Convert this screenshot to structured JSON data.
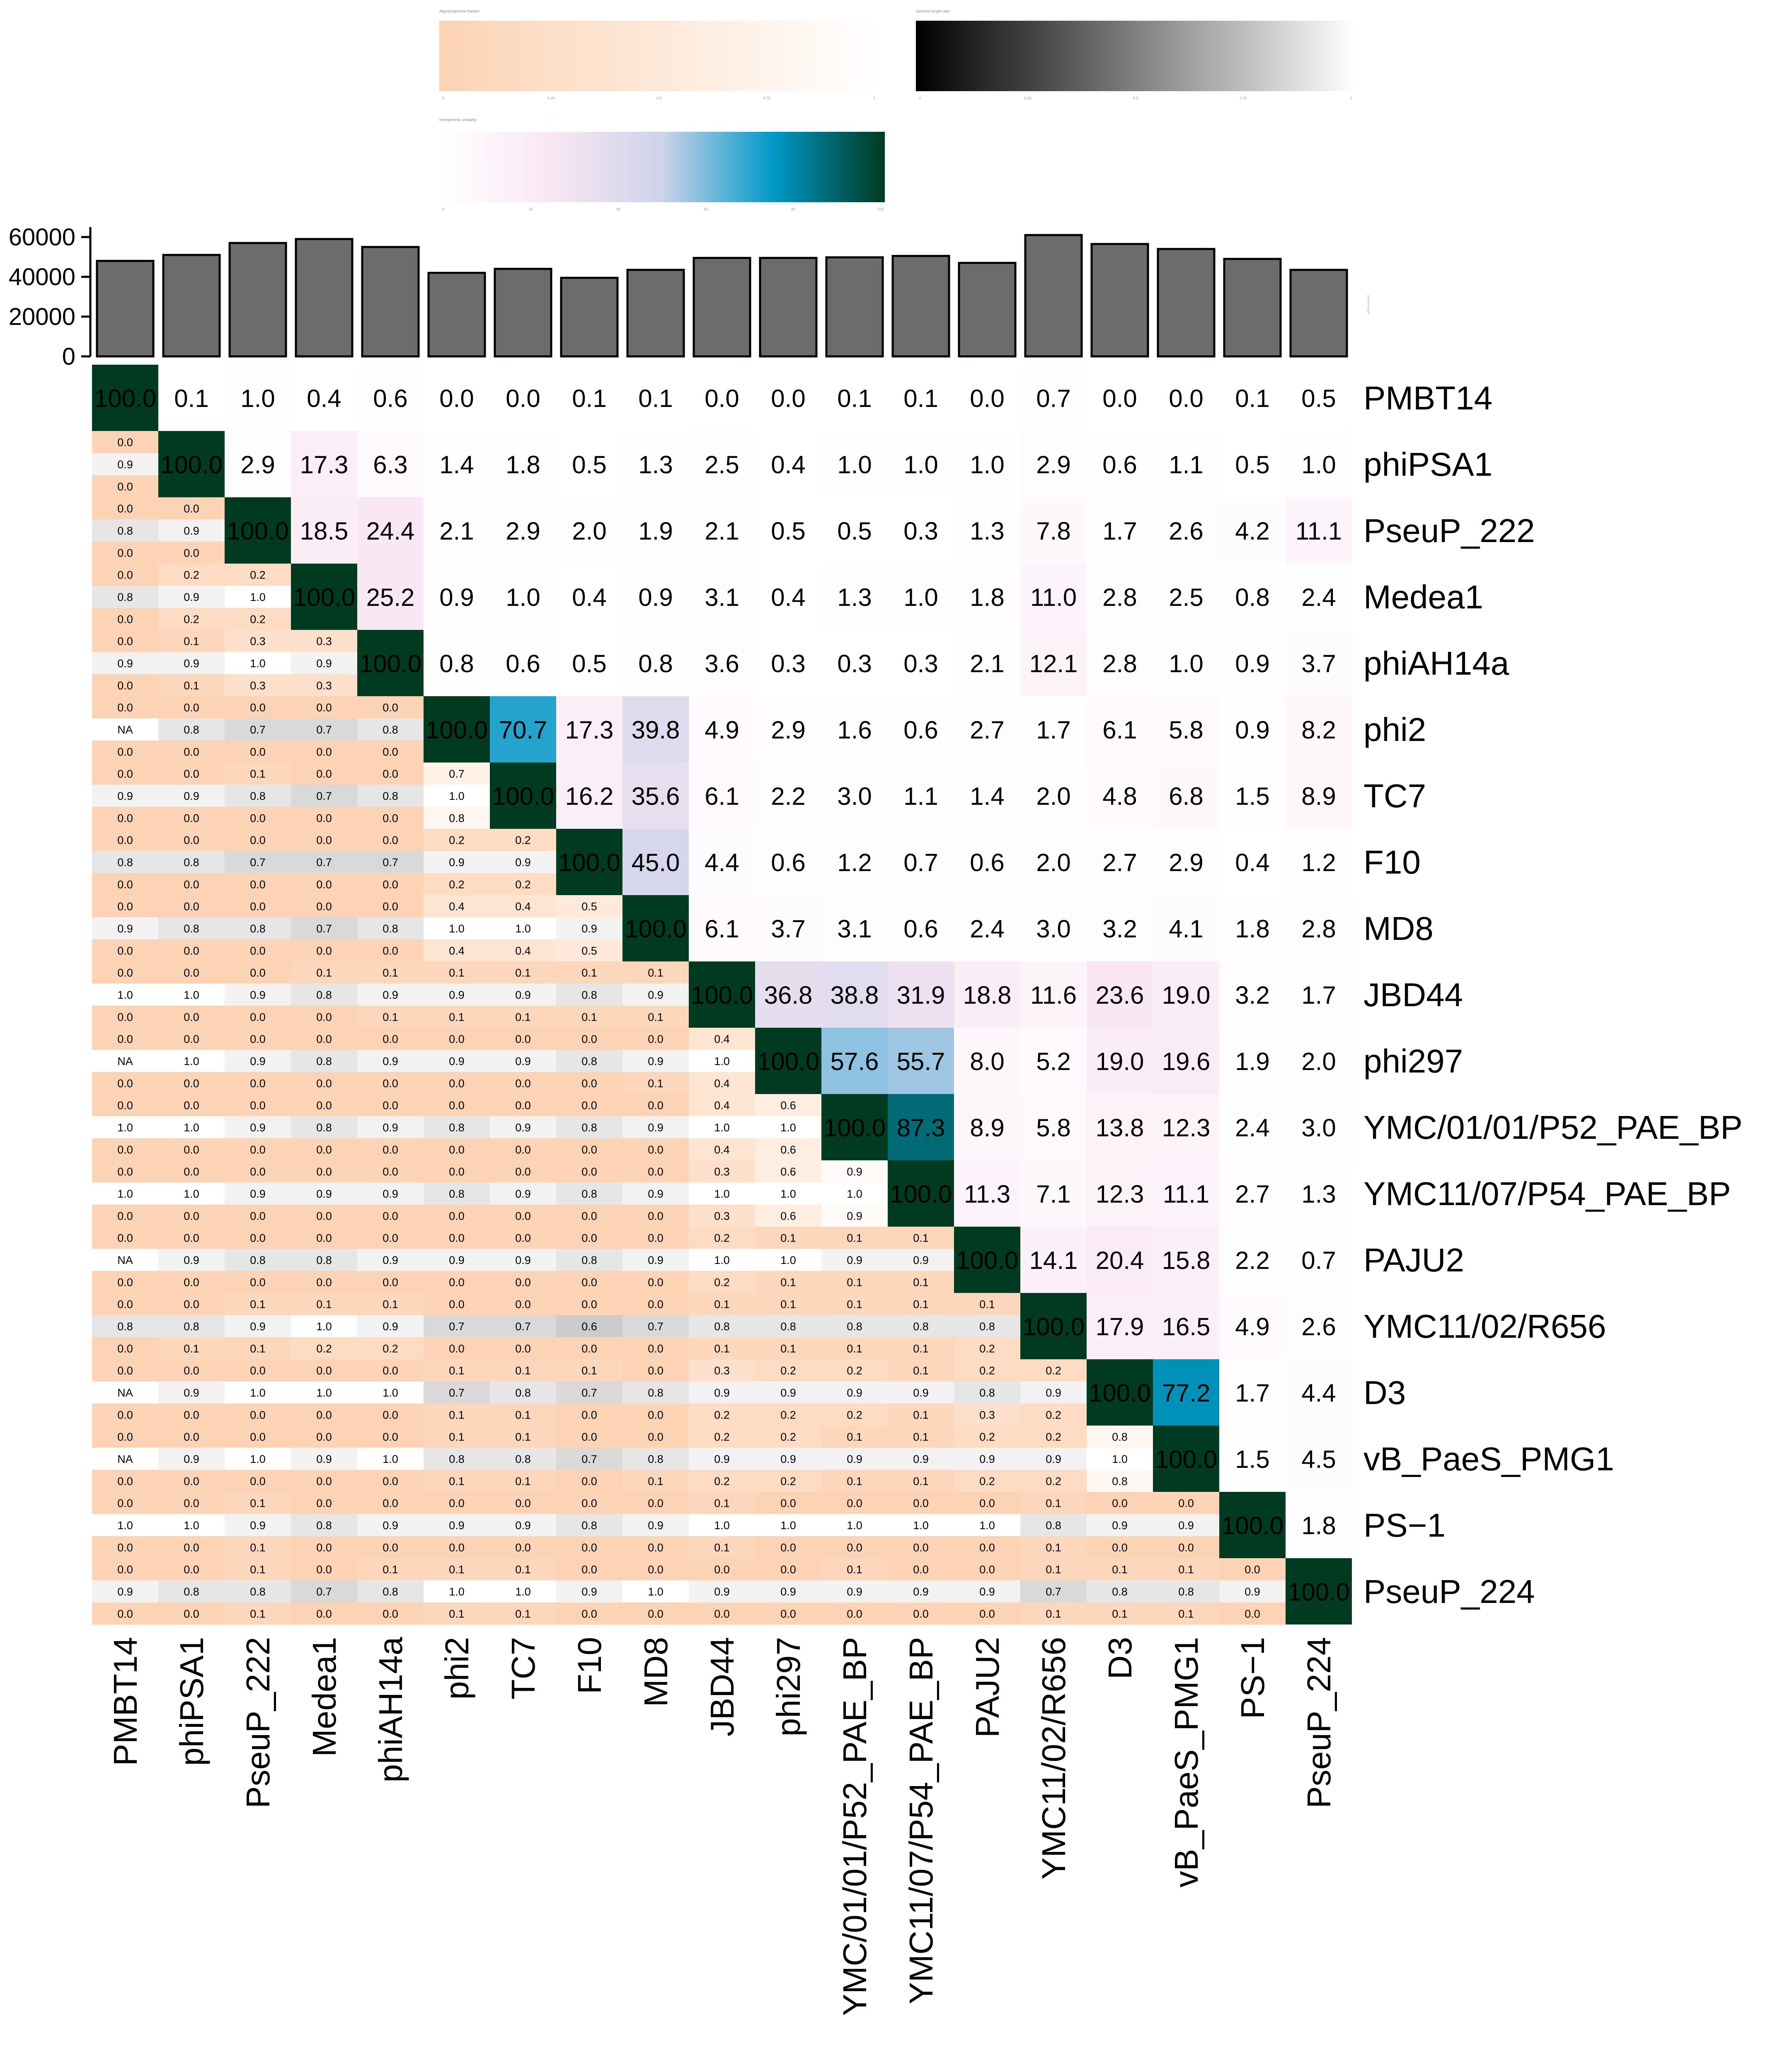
{
  "legends": {
    "lower_orange": {
      "title": "Aligned genome fraction",
      "ticks": [
        "0",
        "0.25",
        "0.5",
        "0.75",
        "1"
      ],
      "colors": [
        "#fcd3b4",
        "#ffffff"
      ]
    },
    "length_ratio": {
      "title": "Genome length ratio",
      "ticks": [
        "0",
        "0.25",
        "0.5",
        "0.75",
        "1"
      ],
      "colors": [
        "#000000",
        "#ffffff"
      ]
    },
    "similarity": {
      "title": "Intergenomic similarity",
      "ticks": [
        "0",
        "20",
        "40",
        "60",
        "80",
        "100"
      ],
      "colors": [
        "#ffffff",
        "#f9e7f3",
        "#cdd3ea",
        "#0099c8",
        "#003a20"
      ]
    }
  },
  "chart_data": {
    "type": "heatmap",
    "phages": [
      "PMBT14",
      "phiPSA1",
      "PseuP_222",
      "Medea1",
      "phiAH14a",
      "phi2",
      "TC7",
      "F10",
      "MD8",
      "JBD44",
      "phi297",
      "YMC/01/01/P52_PAE_BP",
      "YMC11/07/P54_PAE_BP",
      "PAJU2",
      "YMC11/02/R656",
      "D3",
      "vB_PaeS_PMG1",
      "PS−1",
      "PseuP_224"
    ],
    "genome_length": {
      "values": [
        48000,
        51000,
        57000,
        59000,
        55000,
        42000,
        44000,
        39500,
        43500,
        49500,
        49500,
        49800,
        50500,
        47000,
        61000,
        56500,
        54000,
        49000,
        43500
      ],
      "axis_ticks": [
        "0",
        "20000",
        "40000",
        "60000"
      ],
      "ylim": [
        0,
        65000
      ],
      "axis_title": "genome length"
    },
    "upper_similarity": [
      [
        "100.0",
        "0.1",
        "1.0",
        "0.4",
        "0.6",
        "0.0",
        "0.0",
        "0.1",
        "0.1",
        "0.0",
        "0.0",
        "0.1",
        "0.1",
        "0.0",
        "0.7",
        "0.0",
        "0.0",
        "0.1",
        "0.5"
      ],
      [
        "",
        "100.0",
        "2.9",
        "17.3",
        "6.3",
        "1.4",
        "1.8",
        "0.5",
        "1.3",
        "2.5",
        "0.4",
        "1.0",
        "1.0",
        "1.0",
        "2.9",
        "0.6",
        "1.1",
        "0.5",
        "1.0"
      ],
      [
        "",
        "",
        "100.0",
        "18.5",
        "24.4",
        "2.1",
        "2.9",
        "2.0",
        "1.9",
        "2.1",
        "0.5",
        "0.5",
        "0.3",
        "1.3",
        "7.8",
        "1.7",
        "2.6",
        "4.2",
        "11.1"
      ],
      [
        "",
        "",
        "",
        "100.0",
        "25.2",
        "0.9",
        "1.0",
        "0.4",
        "0.9",
        "3.1",
        "0.4",
        "1.3",
        "1.0",
        "1.8",
        "11.0",
        "2.8",
        "2.5",
        "0.8",
        "2.4"
      ],
      [
        "",
        "",
        "",
        "",
        "100.0",
        "0.8",
        "0.6",
        "0.5",
        "0.8",
        "3.6",
        "0.3",
        "0.3",
        "0.3",
        "2.1",
        "12.1",
        "2.8",
        "1.0",
        "0.9",
        "3.7"
      ],
      [
        "",
        "",
        "",
        "",
        "",
        "100.0",
        "70.7",
        "17.3",
        "39.8",
        "4.9",
        "2.9",
        "1.6",
        "0.6",
        "2.7",
        "1.7",
        "6.1",
        "5.8",
        "0.9",
        "8.2"
      ],
      [
        "",
        "",
        "",
        "",
        "",
        "",
        "100.0",
        "16.2",
        "35.6",
        "6.1",
        "2.2",
        "3.0",
        "1.1",
        "1.4",
        "2.0",
        "4.8",
        "6.8",
        "1.5",
        "8.9"
      ],
      [
        "",
        "",
        "",
        "",
        "",
        "",
        "",
        "100.0",
        "45.0",
        "4.4",
        "0.6",
        "1.2",
        "0.7",
        "0.6",
        "2.0",
        "2.7",
        "2.9",
        "0.4",
        "1.2"
      ],
      [
        "",
        "",
        "",
        "",
        "",
        "",
        "",
        "",
        "100.0",
        "6.1",
        "3.7",
        "3.1",
        "0.6",
        "2.4",
        "3.0",
        "3.2",
        "4.1",
        "1.8",
        "2.8"
      ],
      [
        "",
        "",
        "",
        "",
        "",
        "",
        "",
        "",
        "",
        "100.0",
        "36.8",
        "38.8",
        "31.9",
        "18.8",
        "11.6",
        "23.6",
        "19.0",
        "3.2",
        "1.7"
      ],
      [
        "",
        "",
        "",
        "",
        "",
        "",
        "",
        "",
        "",
        "",
        "100.0",
        "57.6",
        "55.7",
        "8.0",
        "5.2",
        "19.0",
        "19.6",
        "1.9",
        "2.0"
      ],
      [
        "",
        "",
        "",
        "",
        "",
        "",
        "",
        "",
        "",
        "",
        "",
        "100.0",
        "87.3",
        "8.9",
        "5.8",
        "13.8",
        "12.3",
        "2.4",
        "3.0"
      ],
      [
        "",
        "",
        "",
        "",
        "",
        "",
        "",
        "",
        "",
        "",
        "",
        "",
        "100.0",
        "11.3",
        "7.1",
        "12.3",
        "11.1",
        "2.7",
        "1.3"
      ],
      [
        "",
        "",
        "",
        "",
        "",
        "",
        "",
        "",
        "",
        "",
        "",
        "",
        "",
        "100.0",
        "14.1",
        "20.4",
        "15.8",
        "2.2",
        "0.7"
      ],
      [
        "",
        "",
        "",
        "",
        "",
        "",
        "",
        "",
        "",
        "",
        "",
        "",
        "",
        "",
        "100.0",
        "17.9",
        "16.5",
        "4.9",
        "2.6"
      ],
      [
        "",
        "",
        "",
        "",
        "",
        "",
        "",
        "",
        "",
        "",
        "",
        "",
        "",
        "",
        "",
        "100.0",
        "77.2",
        "1.7",
        "4.4"
      ],
      [
        "",
        "",
        "",
        "",
        "",
        "",
        "",
        "",
        "",
        "",
        "",
        "",
        "",
        "",
        "",
        "",
        "100.0",
        "1.5",
        "4.5"
      ],
      [
        "",
        "",
        "",
        "",
        "",
        "",
        "",
        "",
        "",
        "",
        "",
        "",
        "",
        "",
        "",
        "",
        "",
        "100.0",
        "1.8"
      ],
      [
        "",
        "",
        "",
        "",
        "",
        "",
        "",
        "",
        "",
        "",
        "",
        "",
        "",
        "",
        "",
        "",
        "",
        "",
        "100.0"
      ]
    ],
    "lower_triples": [
      [],
      [
        [
          "0.0",
          "0.9",
          "0.0"
        ]
      ],
      [
        [
          "0.0",
          "0.8",
          "0.0"
        ],
        [
          "0.0",
          "0.9",
          "0.0"
        ]
      ],
      [
        [
          "0.0",
          "0.8",
          "0.0"
        ],
        [
          "0.2",
          "0.9",
          "0.2"
        ],
        [
          "0.2",
          "1.0",
          "0.2"
        ]
      ],
      [
        [
          "0.0",
          "0.9",
          "0.0"
        ],
        [
          "0.1",
          "0.9",
          "0.1"
        ],
        [
          "0.3",
          "1.0",
          "0.3"
        ],
        [
          "0.3",
          "0.9",
          "0.3"
        ]
      ],
      [
        [
          "0.0",
          "NA",
          "0.0"
        ],
        [
          "0.0",
          "0.8",
          "0.0"
        ],
        [
          "0.0",
          "0.7",
          "0.0"
        ],
        [
          "0.0",
          "0.7",
          "0.0"
        ],
        [
          "0.0",
          "0.8",
          "0.0"
        ]
      ],
      [
        [
          "0.0",
          "0.9",
          "0.0"
        ],
        [
          "0.0",
          "0.9",
          "0.0"
        ],
        [
          "0.1",
          "0.8",
          "0.0"
        ],
        [
          "0.0",
          "0.7",
          "0.0"
        ],
        [
          "0.0",
          "0.8",
          "0.0"
        ],
        [
          "0.7",
          "1.0",
          "0.8"
        ]
      ],
      [
        [
          "0.0",
          "0.8",
          "0.0"
        ],
        [
          "0.0",
          "0.8",
          "0.0"
        ],
        [
          "0.0",
          "0.7",
          "0.0"
        ],
        [
          "0.0",
          "0.7",
          "0.0"
        ],
        [
          "0.0",
          "0.7",
          "0.0"
        ],
        [
          "0.2",
          "0.9",
          "0.2"
        ],
        [
          "0.2",
          "0.9",
          "0.2"
        ]
      ],
      [
        [
          "0.0",
          "0.9",
          "0.0"
        ],
        [
          "0.0",
          "0.8",
          "0.0"
        ],
        [
          "0.0",
          "0.8",
          "0.0"
        ],
        [
          "0.0",
          "0.7",
          "0.0"
        ],
        [
          "0.0",
          "0.8",
          "0.0"
        ],
        [
          "0.4",
          "1.0",
          "0.4"
        ],
        [
          "0.4",
          "1.0",
          "0.4"
        ],
        [
          "0.5",
          "0.9",
          "0.5"
        ]
      ],
      [
        [
          "0.0",
          "1.0",
          "0.0"
        ],
        [
          "0.0",
          "1.0",
          "0.0"
        ],
        [
          "0.0",
          "0.9",
          "0.0"
        ],
        [
          "0.1",
          "0.8",
          "0.0"
        ],
        [
          "0.1",
          "0.9",
          "0.1"
        ],
        [
          "0.1",
          "0.9",
          "0.1"
        ],
        [
          "0.1",
          "0.9",
          "0.1"
        ],
        [
          "0.1",
          "0.8",
          "0.1"
        ],
        [
          "0.1",
          "0.9",
          "0.1"
        ]
      ],
      [
        [
          "0.0",
          "NA",
          "0.0"
        ],
        [
          "0.0",
          "1.0",
          "0.0"
        ],
        [
          "0.0",
          "0.9",
          "0.0"
        ],
        [
          "0.0",
          "0.8",
          "0.0"
        ],
        [
          "0.0",
          "0.9",
          "0.0"
        ],
        [
          "0.0",
          "0.9",
          "0.0"
        ],
        [
          "0.0",
          "0.9",
          "0.0"
        ],
        [
          "0.0",
          "0.8",
          "0.0"
        ],
        [
          "0.0",
          "0.9",
          "0.1"
        ],
        [
          "0.4",
          "1.0",
          "0.4"
        ]
      ],
      [
        [
          "0.0",
          "1.0",
          "0.0"
        ],
        [
          "0.0",
          "1.0",
          "0.0"
        ],
        [
          "0.0",
          "0.9",
          "0.0"
        ],
        [
          "0.0",
          "0.8",
          "0.0"
        ],
        [
          "0.0",
          "0.9",
          "0.0"
        ],
        [
          "0.0",
          "0.8",
          "0.0"
        ],
        [
          "0.0",
          "0.9",
          "0.0"
        ],
        [
          "0.0",
          "0.8",
          "0.0"
        ],
        [
          "0.0",
          "0.9",
          "0.0"
        ],
        [
          "0.4",
          "1.0",
          "0.4"
        ],
        [
          "0.6",
          "1.0",
          "0.6"
        ]
      ],
      [
        [
          "0.0",
          "1.0",
          "0.0"
        ],
        [
          "0.0",
          "1.0",
          "0.0"
        ],
        [
          "0.0",
          "0.9",
          "0.0"
        ],
        [
          "0.0",
          "0.9",
          "0.0"
        ],
        [
          "0.0",
          "0.9",
          "0.0"
        ],
        [
          "0.0",
          "0.8",
          "0.0"
        ],
        [
          "0.0",
          "0.9",
          "0.0"
        ],
        [
          "0.0",
          "0.8",
          "0.0"
        ],
        [
          "0.0",
          "0.9",
          "0.0"
        ],
        [
          "0.3",
          "1.0",
          "0.3"
        ],
        [
          "0.6",
          "1.0",
          "0.6"
        ],
        [
          "0.9",
          "1.0",
          "0.9"
        ]
      ],
      [
        [
          "0.0",
          "NA",
          "0.0"
        ],
        [
          "0.0",
          "0.9",
          "0.0"
        ],
        [
          "0.0",
          "0.8",
          "0.0"
        ],
        [
          "0.0",
          "0.8",
          "0.0"
        ],
        [
          "0.0",
          "0.9",
          "0.0"
        ],
        [
          "0.0",
          "0.9",
          "0.0"
        ],
        [
          "0.0",
          "0.9",
          "0.0"
        ],
        [
          "0.0",
          "0.8",
          "0.0"
        ],
        [
          "0.0",
          "0.9",
          "0.0"
        ],
        [
          "0.2",
          "1.0",
          "0.2"
        ],
        [
          "0.1",
          "1.0",
          "0.1"
        ],
        [
          "0.1",
          "0.9",
          "0.1"
        ],
        [
          "0.1",
          "0.9",
          "0.1"
        ]
      ],
      [
        [
          "0.0",
          "0.8",
          "0.0"
        ],
        [
          "0.0",
          "0.8",
          "0.1"
        ],
        [
          "0.1",
          "0.9",
          "0.1"
        ],
        [
          "0.1",
          "1.0",
          "0.2"
        ],
        [
          "0.1",
          "0.9",
          "0.2"
        ],
        [
          "0.0",
          "0.7",
          "0.0"
        ],
        [
          "0.0",
          "0.7",
          "0.0"
        ],
        [
          "0.0",
          "0.6",
          "0.0"
        ],
        [
          "0.0",
          "0.7",
          "0.0"
        ],
        [
          "0.1",
          "0.8",
          "0.1"
        ],
        [
          "0.1",
          "0.8",
          "0.1"
        ],
        [
          "0.1",
          "0.8",
          "0.1"
        ],
        [
          "0.1",
          "0.8",
          "0.1"
        ],
        [
          "0.1",
          "0.8",
          "0.2"
        ]
      ],
      [
        [
          "0.0",
          "NA",
          "0.0"
        ],
        [
          "0.0",
          "0.9",
          "0.0"
        ],
        [
          "0.0",
          "1.0",
          "0.0"
        ],
        [
          "0.0",
          "1.0",
          "0.0"
        ],
        [
          "0.0",
          "1.0",
          "0.0"
        ],
        [
          "0.1",
          "0.7",
          "0.1"
        ],
        [
          "0.1",
          "0.8",
          "0.1"
        ],
        [
          "0.1",
          "0.7",
          "0.0"
        ],
        [
          "0.0",
          "0.8",
          "0.0"
        ],
        [
          "0.3",
          "0.9",
          "0.2"
        ],
        [
          "0.2",
          "0.9",
          "0.2"
        ],
        [
          "0.2",
          "0.9",
          "0.2"
        ],
        [
          "0.1",
          "0.9",
          "0.1"
        ],
        [
          "0.2",
          "0.8",
          "0.3"
        ],
        [
          "0.2",
          "0.9",
          "0.2"
        ]
      ],
      [
        [
          "0.0",
          "NA",
          "0.0"
        ],
        [
          "0.0",
          "0.9",
          "0.0"
        ],
        [
          "0.0",
          "1.0",
          "0.0"
        ],
        [
          "0.0",
          "0.9",
          "0.0"
        ],
        [
          "0.0",
          "1.0",
          "0.0"
        ],
        [
          "0.1",
          "0.8",
          "0.1"
        ],
        [
          "0.1",
          "0.8",
          "0.1"
        ],
        [
          "0.0",
          "0.7",
          "0.0"
        ],
        [
          "0.0",
          "0.8",
          "0.1"
        ],
        [
          "0.2",
          "0.9",
          "0.2"
        ],
        [
          "0.2",
          "0.9",
          "0.2"
        ],
        [
          "0.1",
          "0.9",
          "0.1"
        ],
        [
          "0.1",
          "0.9",
          "0.1"
        ],
        [
          "0.2",
          "0.9",
          "0.2"
        ],
        [
          "0.2",
          "0.9",
          "0.2"
        ],
        [
          "0.8",
          "1.0",
          "0.8"
        ]
      ],
      [
        [
          "0.0",
          "1.0",
          "0.0"
        ],
        [
          "0.0",
          "1.0",
          "0.0"
        ],
        [
          "0.1",
          "0.9",
          "0.1"
        ],
        [
          "0.0",
          "0.8",
          "0.0"
        ],
        [
          "0.0",
          "0.9",
          "0.0"
        ],
        [
          "0.0",
          "0.9",
          "0.0"
        ],
        [
          "0.0",
          "0.9",
          "0.0"
        ],
        [
          "0.0",
          "0.8",
          "0.0"
        ],
        [
          "0.0",
          "0.9",
          "0.0"
        ],
        [
          "0.1",
          "1.0",
          "0.1"
        ],
        [
          "0.0",
          "1.0",
          "0.0"
        ],
        [
          "0.0",
          "1.0",
          "0.0"
        ],
        [
          "0.0",
          "1.0",
          "0.0"
        ],
        [
          "0.0",
          "1.0",
          "0.0"
        ],
        [
          "0.1",
          "0.8",
          "0.1"
        ],
        [
          "0.0",
          "0.9",
          "0.0"
        ],
        [
          "0.0",
          "0.9",
          "0.0"
        ]
      ],
      [
        [
          "0.0",
          "0.9",
          "0.0"
        ],
        [
          "0.0",
          "0.8",
          "0.0"
        ],
        [
          "0.1",
          "0.8",
          "0.1"
        ],
        [
          "0.0",
          "0.7",
          "0.0"
        ],
        [
          "0.1",
          "0.8",
          "0.0"
        ],
        [
          "0.1",
          "1.0",
          "0.1"
        ],
        [
          "0.1",
          "1.0",
          "0.1"
        ],
        [
          "0.0",
          "0.9",
          "0.0"
        ],
        [
          "0.0",
          "1.0",
          "0.0"
        ],
        [
          "0.0",
          "0.9",
          "0.0"
        ],
        [
          "0.0",
          "0.9",
          "0.0"
        ],
        [
          "0.1",
          "0.9",
          "0.0"
        ],
        [
          "0.0",
          "0.9",
          "0.0"
        ],
        [
          "0.0",
          "0.9",
          "0.0"
        ],
        [
          "0.1",
          "0.7",
          "0.1"
        ],
        [
          "0.1",
          "0.8",
          "0.1"
        ],
        [
          "0.1",
          "0.8",
          "0.1"
        ],
        [
          "0.0",
          "0.9",
          "0.0"
        ]
      ]
    ]
  }
}
